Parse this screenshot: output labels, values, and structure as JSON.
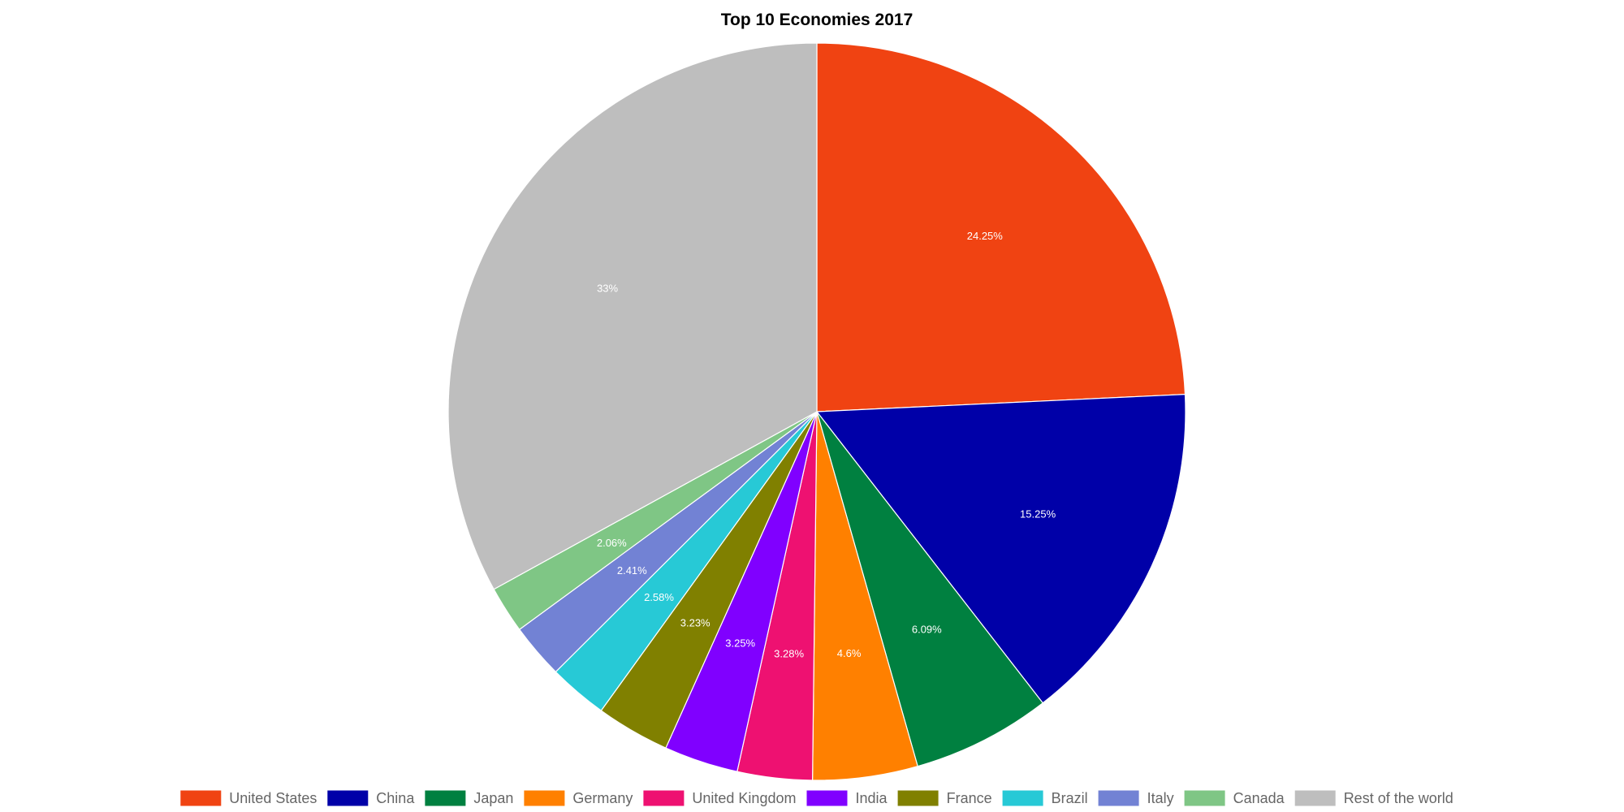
{
  "chart_data": {
    "type": "pie",
    "title": "Top 10 Economies 2017",
    "start_angle_deg": 0,
    "direction": "clockwise",
    "legend_position": "bottom",
    "slices": [
      {
        "name": "United States",
        "value": 24.25,
        "label": "24.25%",
        "color": "#f04312"
      },
      {
        "name": "China",
        "value": 15.25,
        "label": "15.25%",
        "color": "#0000a8"
      },
      {
        "name": "Japan",
        "value": 6.09,
        "label": "6.09%",
        "color": "#008040"
      },
      {
        "name": "Germany",
        "value": 4.6,
        "label": "4.6%",
        "color": "#ff8000"
      },
      {
        "name": "United Kingdom",
        "value": 3.28,
        "label": "3.28%",
        "color": "#ee1171"
      },
      {
        "name": "India",
        "value": 3.25,
        "label": "3.25%",
        "color": "#8000ff"
      },
      {
        "name": "France",
        "value": 3.23,
        "label": "3.23%",
        "color": "#808000"
      },
      {
        "name": "Brazil",
        "value": 2.58,
        "label": "2.58%",
        "color": "#27c9d6"
      },
      {
        "name": "Italy",
        "value": 2.41,
        "label": "2.41%",
        "color": "#7282d4"
      },
      {
        "name": "Canada",
        "value": 2.06,
        "label": "2.06%",
        "color": "#7fc685"
      },
      {
        "name": "Rest of the world",
        "value": 33,
        "label": "33%",
        "color": "#bebebe"
      }
    ]
  }
}
